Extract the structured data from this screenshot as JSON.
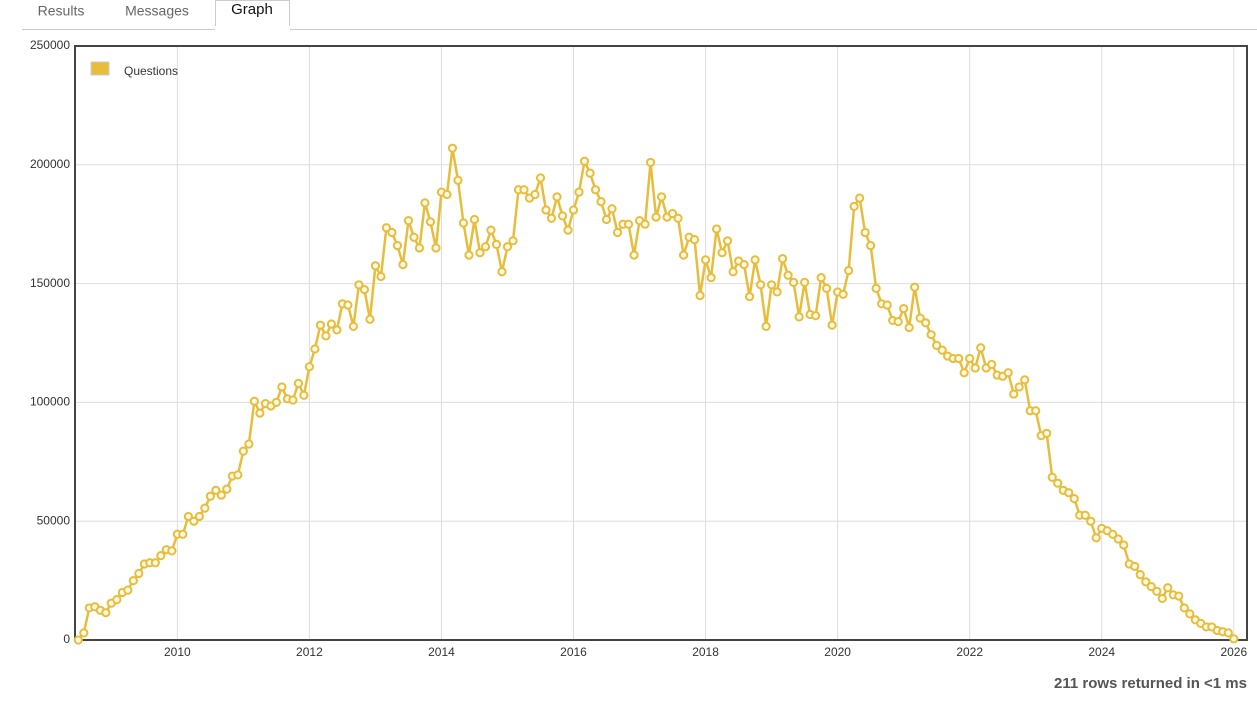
{
  "tabs": [
    "Results",
    "Messages",
    "Graph"
  ],
  "active_tab": 2,
  "footer": "211 rows returned in <1 ms",
  "chart_data": {
    "type": "line",
    "legend": "top-left",
    "grid": true,
    "ylim": [
      0,
      250000
    ],
    "yticks": [
      0,
      50000,
      100000,
      150000,
      200000,
      250000
    ],
    "xlim": [
      2008.45,
      2026.2
    ],
    "xticks": [
      2010,
      2012,
      2014,
      2016,
      2018,
      2020,
      2022,
      2024,
      2026
    ],
    "x": [
      "2008-07",
      "2008-08",
      "2008-09",
      "2008-10",
      "2008-11",
      "2008-12",
      "2009-01",
      "2009-02",
      "2009-03",
      "2009-04",
      "2009-05",
      "2009-06",
      "2009-07",
      "2009-08",
      "2009-09",
      "2009-10",
      "2009-11",
      "2009-12",
      "2010-01",
      "2010-02",
      "2010-03",
      "2010-04",
      "2010-05",
      "2010-06",
      "2010-07",
      "2010-08",
      "2010-09",
      "2010-10",
      "2010-11",
      "2010-12",
      "2011-01",
      "2011-02",
      "2011-03",
      "2011-04",
      "2011-05",
      "2011-06",
      "2011-07",
      "2011-08",
      "2011-09",
      "2011-10",
      "2011-11",
      "2011-12",
      "2012-01",
      "2012-02",
      "2012-03",
      "2012-04",
      "2012-05",
      "2012-06",
      "2012-07",
      "2012-08",
      "2012-09",
      "2012-10",
      "2012-11",
      "2012-12",
      "2013-01",
      "2013-02",
      "2013-03",
      "2013-04",
      "2013-05",
      "2013-06",
      "2013-07",
      "2013-08",
      "2013-09",
      "2013-10",
      "2013-11",
      "2013-12",
      "2014-01",
      "2014-02",
      "2014-03",
      "2014-04",
      "2014-05",
      "2014-06",
      "2014-07",
      "2014-08",
      "2014-09",
      "2014-10",
      "2014-11",
      "2014-12",
      "2015-01",
      "2015-02",
      "2015-03",
      "2015-04",
      "2015-05",
      "2015-06",
      "2015-07",
      "2015-08",
      "2015-09",
      "2015-10",
      "2015-11",
      "2015-12",
      "2016-01",
      "2016-02",
      "2016-03",
      "2016-04",
      "2016-05",
      "2016-06",
      "2016-07",
      "2016-08",
      "2016-09",
      "2016-10",
      "2016-11",
      "2016-12",
      "2017-01",
      "2017-02",
      "2017-03",
      "2017-04",
      "2017-05",
      "2017-06",
      "2017-07",
      "2017-08",
      "2017-09",
      "2017-10",
      "2017-11",
      "2017-12",
      "2018-01",
      "2018-02",
      "2018-03",
      "2018-04",
      "2018-05",
      "2018-06",
      "2018-07",
      "2018-08",
      "2018-09",
      "2018-10",
      "2018-11",
      "2018-12",
      "2019-01",
      "2019-02",
      "2019-03",
      "2019-04",
      "2019-05",
      "2019-06",
      "2019-07",
      "2019-08",
      "2019-09",
      "2019-10",
      "2019-11",
      "2019-12",
      "2020-01",
      "2020-02",
      "2020-03",
      "2020-04",
      "2020-05",
      "2020-06",
      "2020-07",
      "2020-08",
      "2020-09",
      "2020-10",
      "2020-11",
      "2020-12",
      "2021-01",
      "2021-02",
      "2021-03",
      "2021-04",
      "2021-05",
      "2021-06",
      "2021-07",
      "2021-08",
      "2021-09",
      "2021-10",
      "2021-11",
      "2021-12",
      "2022-01",
      "2022-02",
      "2022-03",
      "2022-04",
      "2022-05",
      "2022-06",
      "2022-07",
      "2022-08",
      "2022-09",
      "2022-10",
      "2022-11",
      "2022-12",
      "2023-01",
      "2023-02",
      "2023-03",
      "2023-04",
      "2023-05",
      "2023-06",
      "2023-07",
      "2023-08",
      "2023-09",
      "2023-10",
      "2023-11",
      "2023-12",
      "2024-01",
      "2024-02",
      "2024-03",
      "2024-04",
      "2024-05",
      "2024-06",
      "2024-07",
      "2024-08",
      "2024-09",
      "2024-10",
      "2024-11",
      "2024-12",
      "2025-01",
      "2025-02",
      "2025-03",
      "2025-04",
      "2025-05",
      "2025-06",
      "2025-07",
      "2025-08",
      "2025-09",
      "2025-10",
      "2025-11",
      "2025-12",
      "2026-01"
    ],
    "series": [
      {
        "name": "Questions",
        "color": "#e8bd3c",
        "values": [
          0,
          3000,
          13500,
          14000,
          12500,
          11500,
          15500,
          17000,
          20000,
          21000,
          25000,
          28000,
          32000,
          32500,
          32500,
          35500,
          38000,
          37500,
          44500,
          44500,
          52000,
          50000,
          52000,
          55500,
          60500,
          63000,
          61000,
          63500,
          69000,
          69500,
          79500,
          82500,
          100500,
          95500,
          99500,
          98500,
          100000,
          106500,
          101500,
          101000,
          108000,
          103000,
          115000,
          122500,
          132500,
          128000,
          133000,
          130500,
          141500,
          141000,
          132000,
          149500,
          147500,
          135000,
          157500,
          153000,
          173500,
          171500,
          166000,
          158000,
          176500,
          169500,
          165000,
          184000,
          176000,
          165000,
          188500,
          187500,
          207000,
          193500,
          175500,
          162000,
          177000,
          163000,
          165500,
          172500,
          166500,
          155000,
          165500,
          168000,
          189500,
          189500,
          186000,
          187500,
          194500,
          181000,
          177500,
          186500,
          178500,
          172500,
          181000,
          188500,
          201500,
          196500,
          189500,
          184500,
          177000,
          181500,
          171500,
          175000,
          175000,
          162000,
          176500,
          175000,
          201000,
          178000,
          186500,
          178000,
          179500,
          177500,
          162000,
          169500,
          168500,
          145000,
          160000,
          152500,
          173000,
          163000,
          168000,
          155000,
          159500,
          158000,
          144500,
          160000,
          149500,
          132000,
          149500,
          146500,
          160500,
          153500,
          150500,
          136000,
          150500,
          137000,
          136500,
          152500,
          148000,
          132500,
          146500,
          145500,
          155500,
          182500,
          186000,
          171500,
          166000,
          148000,
          141500,
          141000,
          134500,
          134000,
          139500,
          131500,
          148500,
          135500,
          133500,
          128500,
          124000,
          122000,
          119500,
          118500,
          118500,
          112500,
          118500,
          114500,
          123000,
          114500,
          116000,
          111500,
          111000,
          112500,
          103500,
          106500,
          109500,
          96500,
          96500,
          86000,
          87000,
          68500,
          66000,
          63000,
          62000,
          59500,
          52500,
          52500,
          50000,
          43000,
          47000,
          46000,
          44500,
          42500,
          40000,
          32000,
          31000,
          27500,
          24500,
          22500,
          20500,
          17500,
          22000,
          19000,
          18500,
          13500,
          11000,
          8500,
          7000,
          5500,
          5500,
          4000,
          3500,
          3000,
          500
        ]
      }
    ]
  }
}
